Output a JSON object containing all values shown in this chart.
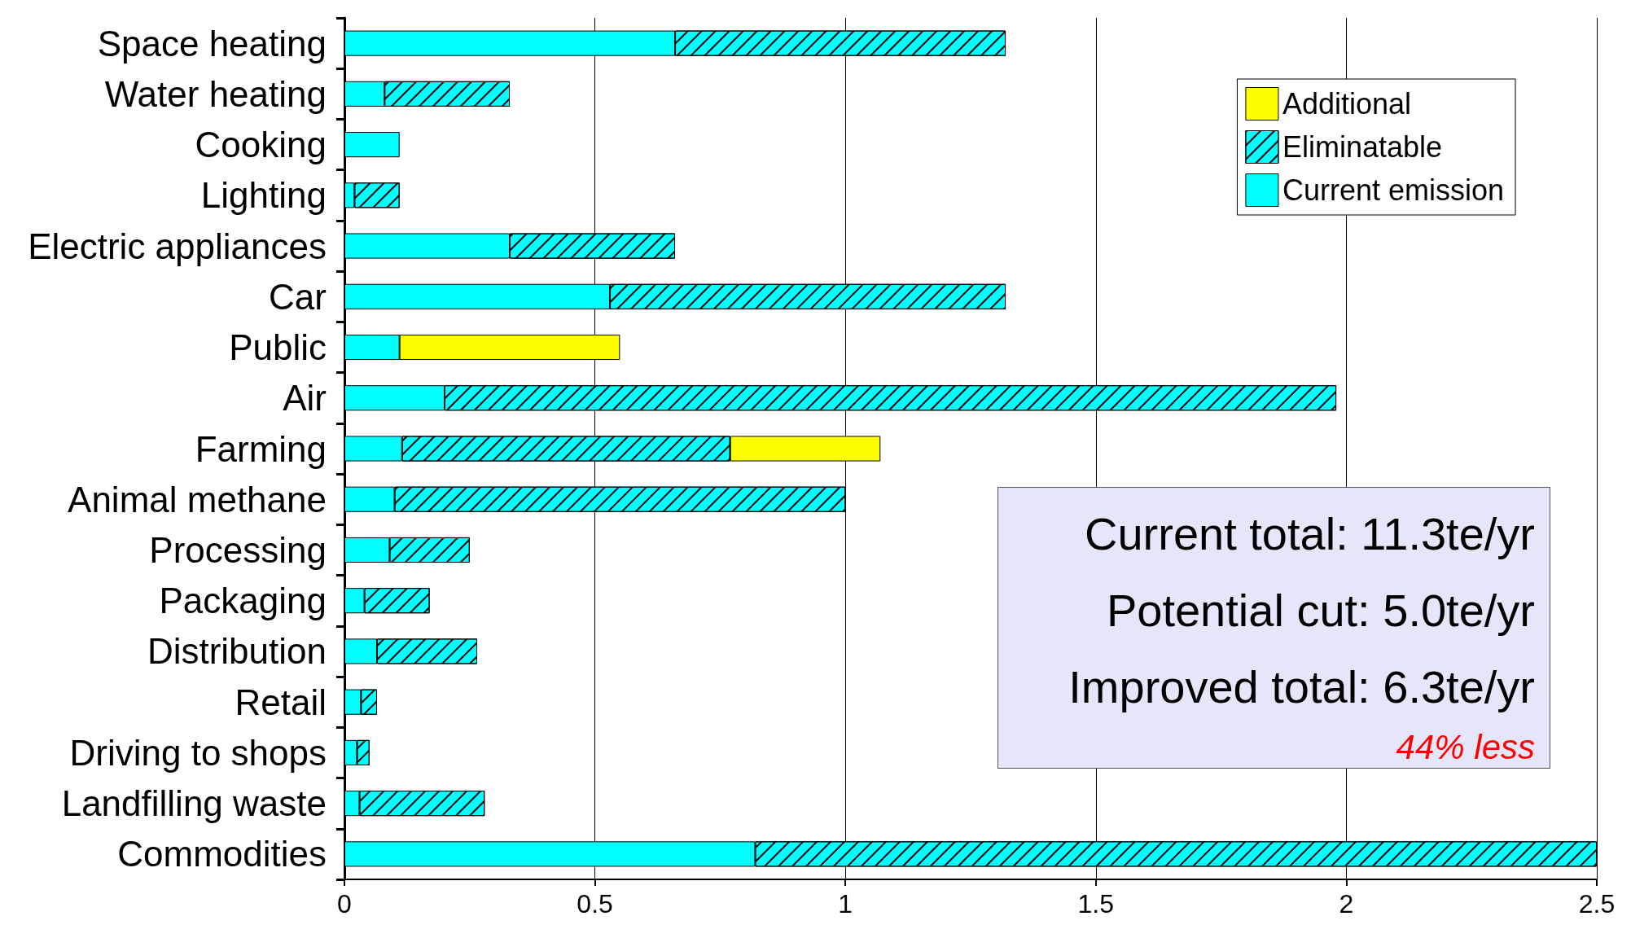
{
  "chart_data": {
    "type": "bar",
    "orientation": "horizontal",
    "stacked": true,
    "categories": [
      "Space heating",
      "Water heating",
      "Cooking",
      "Lighting",
      "Electric appliances",
      "Car",
      "Public",
      "Air",
      "Farming",
      "Animal methane",
      "Processing",
      "Packaging",
      "Distribution",
      "Retail",
      "Driving to shops",
      "Landfilling waste",
      "Commodities"
    ],
    "series": [
      {
        "name": "Current emission",
        "color": "#00ffff",
        "values": [
          0.66,
          0.08,
          0.11,
          0.02,
          0.33,
          0.53,
          0.11,
          0.2,
          0.115,
          0.1,
          0.09,
          0.04,
          0.065,
          0.033,
          0.025,
          0.03,
          0.82
        ]
      },
      {
        "name": "Eliminatable",
        "color": "#00ffff",
        "values": [
          0.66,
          0.25,
          null,
          0.09,
          0.33,
          0.79,
          null,
          1.78,
          0.655,
          0.9,
          0.16,
          0.13,
          0.2,
          0.032,
          0.025,
          0.25,
          1.68
        ]
      },
      {
        "name": "Additional",
        "color": "#ffff00",
        "values": [
          null,
          null,
          null,
          null,
          null,
          null,
          0.44,
          null,
          0.3,
          null,
          null,
          null,
          null,
          null,
          null,
          null,
          null
        ]
      }
    ],
    "xlim": [
      0,
      2.5
    ],
    "xticks": [
      0,
      0.5,
      1,
      1.5,
      2,
      2.5
    ],
    "grid": "x",
    "legend": "top right",
    "annotations": [
      "Current total: 11.3te/yr",
      "Potential cut: 5.0te/yr",
      "Improved total: 6.3te/yr",
      "44% less"
    ]
  }
}
